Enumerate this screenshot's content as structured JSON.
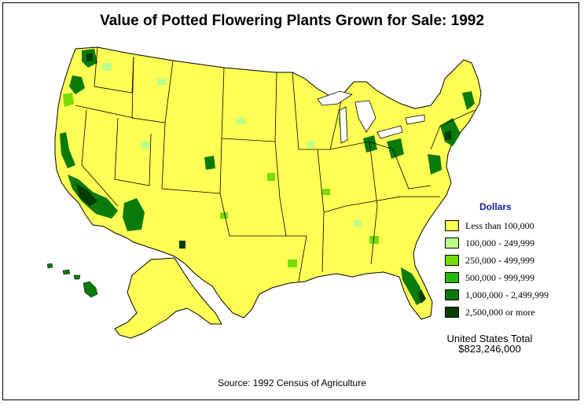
{
  "title": "Value of Potted Flowering Plants Grown for Sale:  1992",
  "legend": {
    "title": "Dollars",
    "items": [
      {
        "label": "Less than 100,000",
        "color": "#ffff55"
      },
      {
        "label": "100,000 - 249,999",
        "color": "#bbff88"
      },
      {
        "label": "250,000 - 499,999",
        "color": "#77dd00"
      },
      {
        "label": "500,000 - 999,999",
        "color": "#22bb00"
      },
      {
        "label": "1,000,000 - 2,499,999",
        "color": "#0a7a0a"
      },
      {
        "label": "2,500,000 or more",
        "color": "#053d05"
      }
    ]
  },
  "total": {
    "label": "United States Total",
    "value": "$823,246,000"
  },
  "source": "Source:  1992 Census of Agriculture",
  "colors": {
    "base": "#ffff55",
    "border": "#000000",
    "legend_title": "#1a1aa6"
  }
}
